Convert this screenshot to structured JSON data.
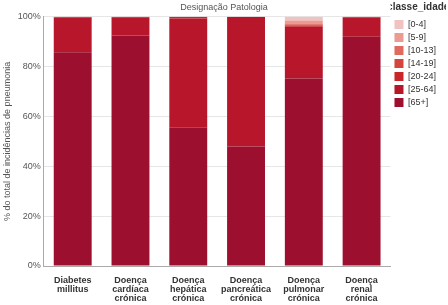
{
  "chart_data": {
    "type": "bar",
    "title": "Designação Patologia",
    "y_label": "% do total de incidências de pneumonia",
    "legend_title": "classe_idade",
    "legend": "right",
    "stacked": true,
    "grid": true,
    "categories": [
      "Diabetes millitus",
      "Doença cardíaca crónica",
      "Doença hepática crónica",
      "Doença pancreática crónica",
      "Doença pulmonar crónica",
      "Doença renal crónica"
    ],
    "series": [
      {
        "name": "[0-4]",
        "color": "#f0c2c2",
        "values": [
          0,
          0,
          0,
          0,
          1.5,
          0
        ]
      },
      {
        "name": "[5-9]",
        "color": "#eb9b91",
        "values": [
          0,
          0,
          0,
          0,
          1.2,
          0
        ]
      },
      {
        "name": "[10-13]",
        "color": "#df6a5d",
        "values": [
          0,
          0,
          0,
          0,
          0.4,
          0
        ]
      },
      {
        "name": "[14-19]",
        "color": "#d4463b",
        "values": [
          0,
          0,
          0,
          0,
          0.4,
          0
        ]
      },
      {
        "name": "[20-24]",
        "color": "#c8262b",
        "values": [
          0.4,
          0.2,
          0.7,
          0,
          0.5,
          0.4
        ]
      },
      {
        "name": "[25-64]",
        "color": "#b8162a",
        "values": [
          13.8,
          7.3,
          43.8,
          52,
          20.8,
          7.6
        ]
      },
      {
        "name": "[65+]",
        "color": "#9c0f2e",
        "values": [
          85.8,
          92.5,
          55.5,
          48,
          75.2,
          92
        ]
      }
    ],
    "ylim": [
      0,
      100
    ],
    "yticks": [
      {
        "value": 0,
        "label": "0%"
      },
      {
        "value": 20,
        "label": "20%"
      },
      {
        "value": 40,
        "label": "40%"
      },
      {
        "value": 60,
        "label": "60%"
      },
      {
        "value": 80,
        "label": "80%"
      },
      {
        "value": 100,
        "label": "100%"
      }
    ]
  }
}
